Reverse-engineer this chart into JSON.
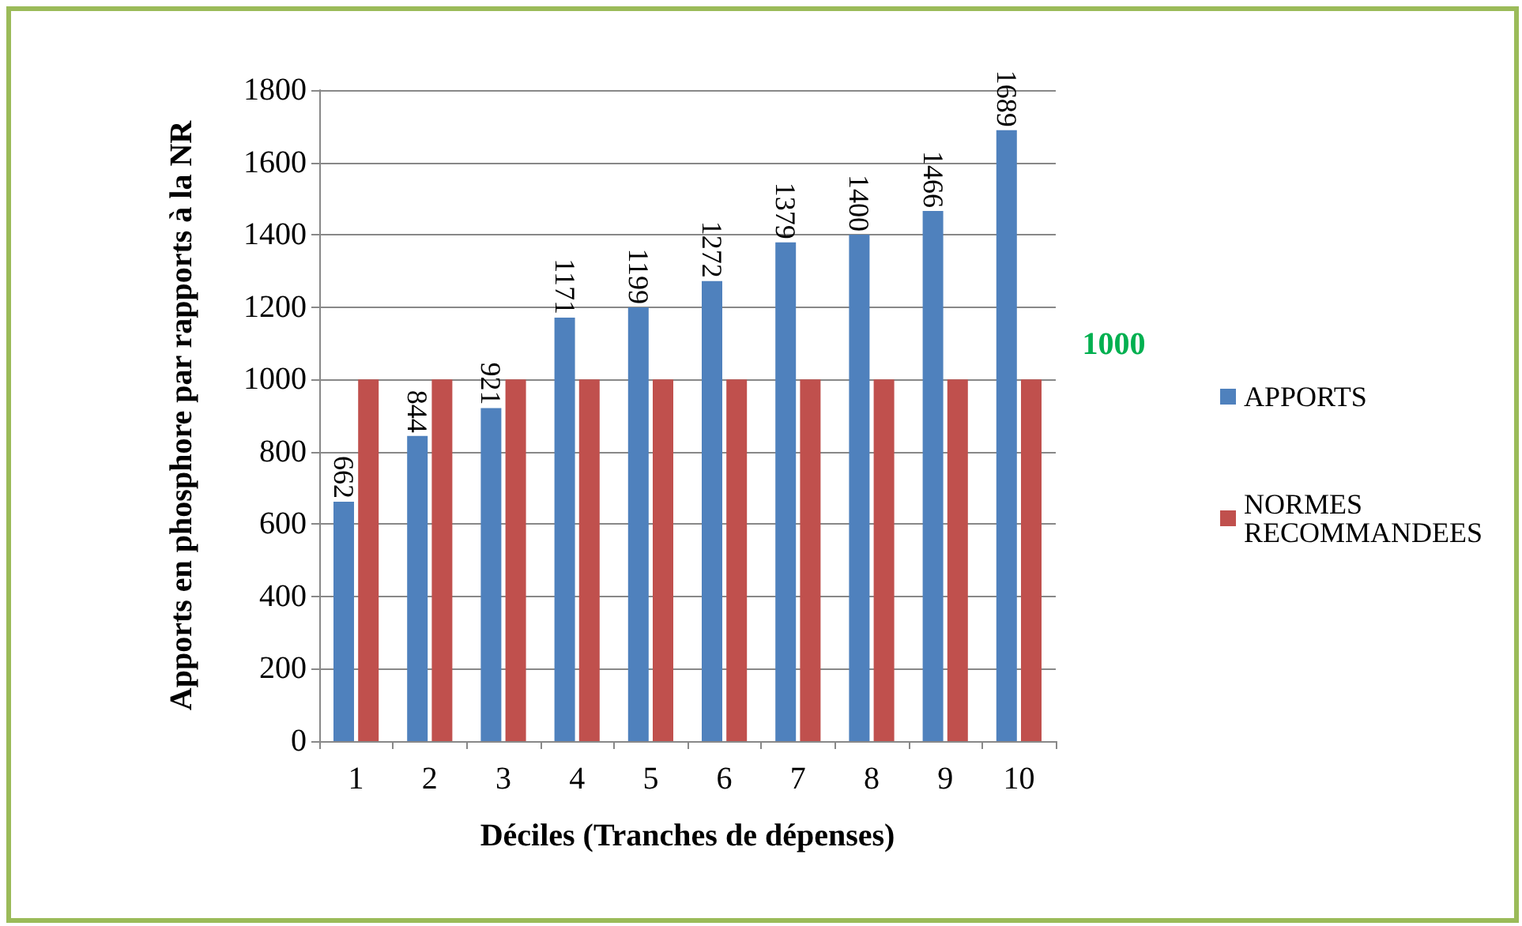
{
  "chart_data": {
    "type": "bar",
    "xlabel": "Déciles (Tranches de dépenses)",
    "ylabel": "Apports en phosphore par rapports à la NR",
    "categories": [
      "1",
      "2",
      "3",
      "4",
      "5",
      "6",
      "7",
      "8",
      "9",
      "10"
    ],
    "series": [
      {
        "name": "APPORTS",
        "color": "#4f81bd",
        "values": [
          662,
          844,
          921,
          1171,
          1199,
          1272,
          1379,
          1400,
          1466,
          1689
        ],
        "value_labels": [
          "662",
          "844",
          "921",
          "1171",
          "1199",
          "1272",
          "1379",
          "1400",
          "1466",
          "1689"
        ]
      },
      {
        "name": "NORMES RECOMMANDEES",
        "color": "#c0504d",
        "values": [
          1000,
          1000,
          1000,
          1000,
          1000,
          1000,
          1000,
          1000,
          1000,
          1000
        ]
      }
    ],
    "ylim": [
      0,
      1800
    ],
    "yticks": [
      0,
      200,
      400,
      600,
      800,
      1000,
      1200,
      1400,
      1600,
      1800
    ],
    "grid": "y",
    "legend": "right",
    "annotations": [
      {
        "text": "1000",
        "x": "10",
        "y": 1000
      }
    ]
  }
}
